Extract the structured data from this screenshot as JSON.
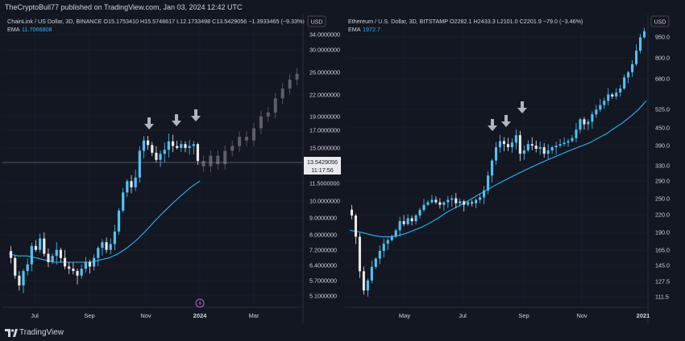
{
  "header": {
    "published_text": "TheCryptoBull77 published on TradingView.com, Jan 03, 2024 12:42 UTC"
  },
  "footer": {
    "brand": "TradingView"
  },
  "colors": {
    "background": "#131722",
    "up": "#4fc3f7",
    "down": "#e8e8e8",
    "future": "#5d606b",
    "ema": "#29b6f6",
    "grid": "#1e2230",
    "arrow": "#b2b5be"
  },
  "charts": [
    {
      "info": "ChainLink / US Dollar, 3D, BINANCE  O15.1753410  H15.5748617  L12.1733498  C13.5429056  −1.3933465 (−9.33%)",
      "ema_label": "EMA",
      "ema_value": "11.7066808",
      "currency": "USD",
      "price_tag": "13.5429056",
      "countdown": "11:17:56",
      "y_labels": [
        "34.0000000",
        "30.0000000",
        "26.0000000",
        "22.0000000",
        "19.0000000",
        "17.0000000",
        "15.0000000",
        "13.0000000",
        "11.5000000",
        "10.0000000",
        "9.0000000",
        "8.0000000",
        "7.2000000",
        "6.4000000",
        "5.7000000",
        "5.1000000"
      ],
      "x_labels": [
        "Jul",
        "Sep",
        "Nov",
        "2024",
        "Mar"
      ]
    },
    {
      "info": "Ethereum / U.S. Dollar, 3D, BITSTAMP  O2282.1  H2433.3  L2101.0  C2201.9  −79.0 (−3.46%)",
      "ema_label": "EMA",
      "ema_value": "1972.7",
      "currency": "USD",
      "y_labels": [
        "950.0",
        "800.0",
        "680.0",
        "525.0",
        "450.0",
        "390.0",
        "330.0",
        "290.0",
        "250.0",
        "220.0",
        "190.0",
        "165.0",
        "145.0",
        "127.5",
        "111.5"
      ],
      "x_labels": [
        "May",
        "Jul",
        "Sep",
        "Nov",
        "2021"
      ]
    }
  ],
  "chart_data": [
    {
      "type": "candlestick",
      "title": "ChainLink / US Dollar, 3D, BINANCE",
      "scale": "log",
      "ylim": [
        4.8,
        38
      ],
      "x_ticks": [
        "Jul",
        "Sep",
        "Nov",
        "2024",
        "Mar"
      ],
      "y_ticks": [
        34,
        30,
        26,
        22,
        19,
        17,
        15,
        13,
        11.5,
        10,
        9,
        8,
        7.2,
        6.4,
        5.7,
        5.1
      ],
      "close_path_approx": [
        6.8,
        6.0,
        5.6,
        6.2,
        6.5,
        7.4,
        7.2,
        7.8,
        7.0,
        6.6,
        6.9,
        7.2,
        6.8,
        6.4,
        6.3,
        6.2,
        6.0,
        6.3,
        6.6,
        6.4,
        6.8,
        7.3,
        7.6,
        7.2,
        7.5,
        8.2,
        9.5,
        10.8,
        11.7,
        11.2,
        12.0,
        14.5,
        15.6,
        15.1,
        14.3,
        13.6,
        14.2,
        14.6,
        15.5,
        15.0,
        14.8,
        15.2,
        14.8,
        15.0,
        15.2,
        13.5
      ],
      "projection_approx": [
        13.0,
        14.0,
        13.2,
        14.5,
        15.0,
        16.0,
        15.6,
        17.0,
        18.5,
        19.0,
        21.0,
        22.5,
        24.0,
        25.0
      ],
      "ema_approx": [
        7.0,
        6.9,
        6.9,
        6.8,
        6.7,
        6.6,
        6.6,
        6.6,
        6.6,
        6.6,
        6.7,
        6.8,
        7.0,
        7.3,
        7.7,
        8.2,
        8.8,
        9.4,
        10.0,
        10.6,
        11.2,
        11.7
      ],
      "last_close": 13.5429056,
      "ema_last": 11.7066808
    },
    {
      "type": "candlestick",
      "title": "Ethereum / U.S. Dollar, 3D, BITSTAMP",
      "scale": "log",
      "ylim": [
        100,
        1150
      ],
      "x_ticks": [
        "May",
        "Jul",
        "Sep",
        "Nov",
        "2021"
      ],
      "y_ticks": [
        950,
        800,
        680,
        525,
        450,
        390,
        330,
        290,
        250,
        220,
        190,
        165,
        145,
        127.5,
        111.5
      ],
      "close_path_approx": [
        215,
        180,
        135,
        115,
        125,
        140,
        150,
        160,
        170,
        175,
        180,
        190,
        205,
        200,
        210,
        205,
        215,
        225,
        235,
        240,
        245,
        240,
        235,
        240,
        245,
        248,
        238,
        242,
        235,
        240,
        238,
        245,
        250,
        265,
        300,
        340,
        380,
        400,
        390,
        380,
        395,
        420,
        360,
        370,
        390,
        385,
        375,
        380,
        360,
        370,
        380,
        385,
        390,
        395,
        400,
        410,
        440,
        480,
        460,
        470,
        500,
        520,
        540,
        560,
        590,
        580,
        600,
        620,
        680,
        710,
        760,
        850,
        950,
        1000
      ],
      "ema_approx": [
        190,
        188,
        185,
        182,
        180,
        180,
        182,
        185,
        190,
        195,
        202,
        210,
        220,
        228,
        236,
        245,
        255,
        265,
        275,
        285,
        295,
        305,
        315,
        325,
        335,
        345,
        355,
        365,
        375,
        385,
        395,
        410,
        425,
        445,
        465,
        490,
        520,
        560
      ],
      "ema_last": 1972.7
    }
  ]
}
